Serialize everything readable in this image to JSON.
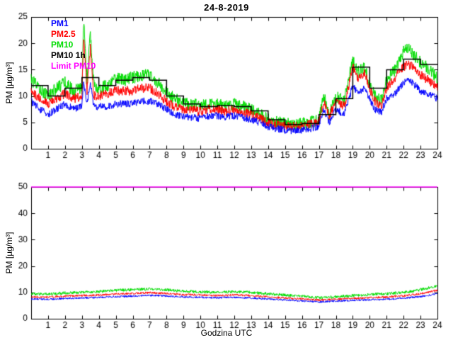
{
  "figure": {
    "title": "24-8-2019",
    "xlabel": "Godzina UTC",
    "ylabel": "PM [µg/m³]",
    "background": "#ffffff",
    "legend": [
      {
        "label": "PM1",
        "color": "#0000ff"
      },
      {
        "label": "PM2.5",
        "color": "#ff0000"
      },
      {
        "label": "PM10",
        "color": "#00dd00"
      },
      {
        "label": "PM10 1h",
        "color": "#000000"
      },
      {
        "label": "Limit PM10",
        "color": "#ff00ff"
      }
    ]
  },
  "chart_data": [
    {
      "type": "line",
      "title": "24-8-2019",
      "xlabel": "",
      "ylabel": "PM [µg/m³]",
      "xlim": [
        0,
        24
      ],
      "ylim": [
        0,
        25
      ],
      "xticks": [
        1,
        2,
        3,
        4,
        5,
        6,
        7,
        8,
        9,
        10,
        11,
        12,
        13,
        14,
        15,
        16,
        17,
        18,
        19,
        20,
        21,
        22,
        23,
        24
      ],
      "yticks": [
        0,
        5,
        10,
        15,
        20,
        25
      ],
      "x": [
        0,
        0.5,
        1,
        1.5,
        2,
        2.5,
        3,
        3.1,
        3.3,
        3.5,
        3.7,
        4,
        4.5,
        5,
        5.5,
        6,
        6.5,
        7,
        7.5,
        8,
        8.5,
        9,
        9.5,
        10,
        10.5,
        11,
        11.5,
        12,
        12.5,
        13,
        13.5,
        14,
        14.5,
        15,
        15.5,
        16,
        16.5,
        17,
        17.3,
        17.6,
        18,
        18.5,
        19,
        19.3,
        19.7,
        20,
        20.3,
        20.7,
        21,
        21.5,
        22,
        22.3,
        22.7,
        23,
        23.5,
        24
      ],
      "series": [
        {
          "name": "PM10",
          "color": "#00dd00",
          "noise": 1.2,
          "values": [
            13,
            11.5,
            10,
            11.5,
            12.5,
            11,
            11.5,
            24.5,
            13,
            22,
            12,
            11.5,
            12,
            13.5,
            13,
            13.5,
            14,
            14,
            12.5,
            10.5,
            9.5,
            8.5,
            8.5,
            8,
            8.5,
            8.5,
            8,
            8.5,
            8,
            7.5,
            6.5,
            5.5,
            5,
            4.8,
            4.5,
            4.8,
            5,
            5.5,
            10,
            6.5,
            10,
            9,
            17,
            14.5,
            15.5,
            12.5,
            10,
            9,
            13,
            15,
            18.5,
            19,
            17.5,
            16.5,
            15,
            13.5
          ]
        },
        {
          "name": "PM2.5",
          "color": "#ff0000",
          "noise": 0.9,
          "values": [
            11,
            9.5,
            8.5,
            9.5,
            10.5,
            9.5,
            10,
            21,
            11,
            19,
            10,
            10,
            10.5,
            11,
            11,
            11,
            11.5,
            11.5,
            10.5,
            9,
            8,
            7.5,
            7.5,
            7,
            7.5,
            7.5,
            7,
            7.5,
            7,
            6.5,
            6,
            5,
            4.5,
            4.3,
            4.2,
            4.4,
            4.6,
            5,
            9,
            6,
            9,
            8,
            15.5,
            13.5,
            14.5,
            11.5,
            9,
            8,
            11.5,
            13.5,
            15.5,
            16,
            15,
            14,
            13,
            11.5
          ]
        },
        {
          "name": "PM1",
          "color": "#0000ff",
          "noise": 0.7,
          "values": [
            9,
            7.5,
            6.5,
            7.5,
            8.5,
            7.5,
            8,
            13,
            8.5,
            12.5,
            8,
            8,
            8,
            8.5,
            8.5,
            8.5,
            9,
            9,
            8.5,
            7.5,
            6.5,
            6,
            6,
            5.8,
            6.2,
            6.2,
            6,
            6.3,
            6,
            5.5,
            5,
            4.2,
            3.8,
            3.5,
            3.3,
            3.6,
            3.8,
            4.2,
            7.5,
            5,
            7.5,
            6.5,
            12,
            10.5,
            11.5,
            9.5,
            7.5,
            7,
            9.5,
            10.5,
            12.5,
            13,
            12,
            11,
            10.5,
            9.5
          ]
        }
      ],
      "step_series": {
        "name": "PM10 1h",
        "color": "#000000",
        "hour_values": [
          12,
          10,
          11.5,
          13.5,
          12,
          13,
          13.5,
          13,
          10,
          8.5,
          8,
          8.2,
          8,
          7.2,
          5.5,
          4.6,
          4.8,
          6.5,
          9.5,
          15.5,
          11.5,
          15,
          17,
          16
        ]
      }
    },
    {
      "type": "line",
      "title": "",
      "xlabel": "Godzina UTC",
      "ylabel": "PM [µg/m³]",
      "xlim": [
        0,
        24
      ],
      "ylim": [
        0,
        50
      ],
      "xticks": [
        1,
        2,
        3,
        4,
        5,
        6,
        7,
        8,
        9,
        10,
        11,
        12,
        13,
        14,
        15,
        16,
        17,
        18,
        19,
        20,
        21,
        22,
        23,
        24
      ],
      "yticks": [
        0,
        10,
        20,
        30,
        40,
        50
      ],
      "x": [
        0,
        1,
        2,
        3,
        4,
        5,
        6,
        7,
        8,
        9,
        10,
        11,
        12,
        13,
        14,
        15,
        16,
        17,
        18,
        19,
        20,
        21,
        22,
        23,
        24
      ],
      "series": [
        {
          "name": "PM10",
          "color": "#00dd00",
          "noise": 0.55,
          "values": [
            9.5,
            9.3,
            9.8,
            10,
            10.3,
            10.8,
            11,
            11.3,
            11,
            10.5,
            10.2,
            10,
            10.3,
            10,
            9.5,
            9,
            8.5,
            8,
            8.3,
            8.8,
            9.2,
            9.5,
            10,
            11,
            12.5
          ]
        },
        {
          "name": "PM2.5",
          "color": "#ff0000",
          "noise": 0.4,
          "values": [
            8.3,
            8.2,
            8.6,
            8.8,
            9,
            9.4,
            9.6,
            9.9,
            9.6,
            9.2,
            9,
            8.8,
            9,
            8.8,
            8.3,
            7.9,
            7.5,
            7.1,
            7.4,
            7.7,
            8,
            8.3,
            8.7,
            9.5,
            10.8
          ]
        },
        {
          "name": "PM1",
          "color": "#0000ff",
          "noise": 0.35,
          "values": [
            7.5,
            7.4,
            7.7,
            7.9,
            8.1,
            8.4,
            8.6,
            8.9,
            8.6,
            8.3,
            8.1,
            8,
            8.1,
            7.9,
            7.5,
            7.1,
            6.8,
            6.4,
            6.7,
            7,
            7.2,
            7.4,
            7.8,
            8.4,
            9.5
          ]
        }
      ],
      "limit_line": {
        "name": "Limit PM10",
        "color": "#ff00ff",
        "value": 50
      }
    }
  ]
}
